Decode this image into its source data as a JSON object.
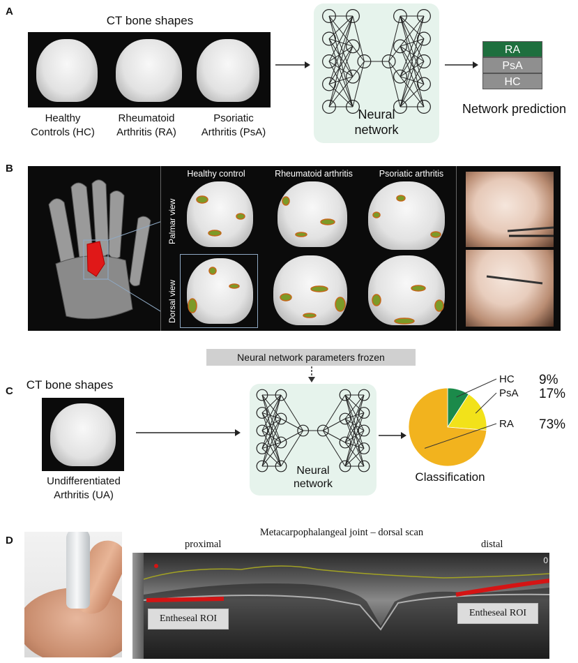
{
  "panel_a": {
    "label": "A",
    "title": "CT bone shapes",
    "bones": [
      {
        "line1": "Healthy",
        "line2": "Controls (HC)"
      },
      {
        "line1": "Rheumatoid",
        "line2": "Arthritis (RA)"
      },
      {
        "line1": "Psoriatic",
        "line2": "Arthritis (PsA)"
      }
    ],
    "network_label_1": "Neural",
    "network_label_2": "network",
    "prediction_items": [
      "RA",
      "PsA",
      "HC"
    ],
    "prediction_caption": "Network prediction",
    "colors": {
      "ra": "#1e6f3e",
      "other": "#8f8f8f"
    }
  },
  "panel_b": {
    "label": "B",
    "col_heads": [
      "Healthy control",
      "Rheumatoid arthritis",
      "Psoriatic arthritis"
    ],
    "row_heads": [
      "Palmar view",
      "Dorsal view"
    ]
  },
  "panel_c": {
    "label": "C",
    "frozen_label": "Neural network parameters frozen",
    "title": "CT bone shapes",
    "bone_line1": "Undifferentiated",
    "bone_line2": "Arthritis (UA)",
    "network_label_1": "Neural",
    "network_label_2": "network",
    "classification_caption": "Classification"
  },
  "chart_data": {
    "type": "pie",
    "categories": [
      "HC",
      "PsA",
      "RA"
    ],
    "labels": [
      "9%",
      "17%",
      "73%"
    ],
    "values": [
      9,
      17,
      73
    ],
    "colors": [
      "#1b8a4a",
      "#f2e21a",
      "#f2b31e"
    ],
    "title": "",
    "legend": "right"
  },
  "panel_d": {
    "label": "D",
    "title": "Metacarpophalangeal joint – dorsal scan",
    "left_label": "proximal",
    "right_label": "distal",
    "roi_left": "Entheseal ROI",
    "roi_right": "Entheseal ROI",
    "corner_marker": "0"
  }
}
